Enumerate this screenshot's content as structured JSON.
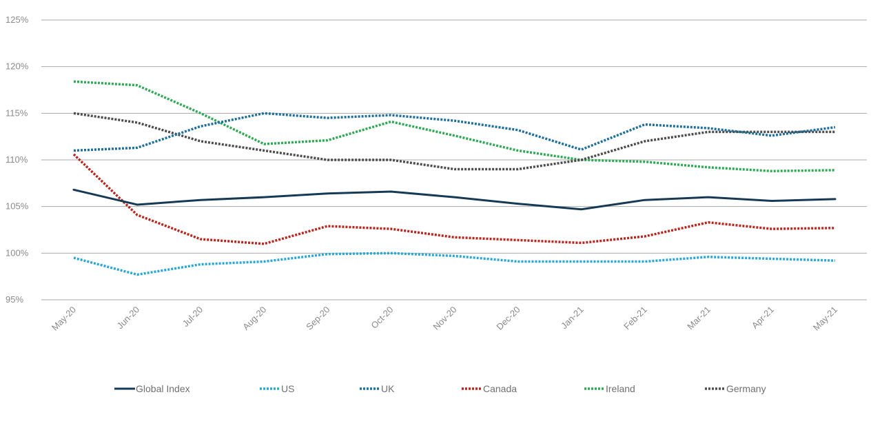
{
  "chart_data": {
    "type": "line",
    "x": [
      "May-20",
      "Jun-20",
      "Jul-20",
      "Aug-20",
      "Sep-20",
      "Oct-20",
      "Nov-20",
      "Dec-20",
      "Jan-21",
      "Feb-21",
      "Mar-21",
      "Apr-21",
      "May-21"
    ],
    "yticks": [
      "95%",
      "100%",
      "105%",
      "110%",
      "115%",
      "120%",
      "125%"
    ],
    "ylim": [
      95,
      125
    ],
    "grid": true,
    "legend_position": "bottom",
    "series": [
      {
        "name": "Global Index",
        "color": "#163a55",
        "style": "solid",
        "values": [
          106.8,
          105.2,
          105.7,
          106.0,
          106.4,
          106.6,
          106.0,
          105.3,
          104.7,
          105.7,
          106.0,
          105.6,
          105.8
        ]
      },
      {
        "name": "US",
        "color": "#2aa7d6",
        "style": "dotted",
        "values": [
          99.5,
          97.7,
          98.8,
          99.1,
          99.9,
          100.0,
          99.7,
          99.1,
          99.1,
          99.1,
          99.6,
          99.4,
          99.2
        ]
      },
      {
        "name": "UK",
        "color": "#1f6f9c",
        "style": "dotted",
        "values": [
          111.0,
          111.3,
          113.6,
          115.0,
          114.5,
          114.8,
          114.2,
          113.2,
          111.1,
          113.8,
          113.4,
          112.6,
          113.5
        ]
      },
      {
        "name": "Canada",
        "color": "#b8261f",
        "style": "dotted",
        "values": [
          110.6,
          104.1,
          101.5,
          101.0,
          102.9,
          102.6,
          101.7,
          101.4,
          101.1,
          101.8,
          103.3,
          102.6,
          102.7
        ]
      },
      {
        "name": "Ireland",
        "color": "#2eaa55",
        "style": "dotted",
        "values": [
          118.4,
          118.0,
          115.0,
          111.7,
          112.1,
          114.1,
          112.6,
          111.0,
          110.0,
          109.8,
          109.2,
          108.8,
          108.9
        ]
      },
      {
        "name": "Germany",
        "color": "#4d4d4d",
        "style": "dotted",
        "values": [
          115.0,
          114.0,
          112.0,
          111.0,
          110.0,
          110.0,
          109.0,
          109.0,
          110.0,
          112.0,
          113.0,
          113.0,
          113.0
        ]
      }
    ]
  }
}
